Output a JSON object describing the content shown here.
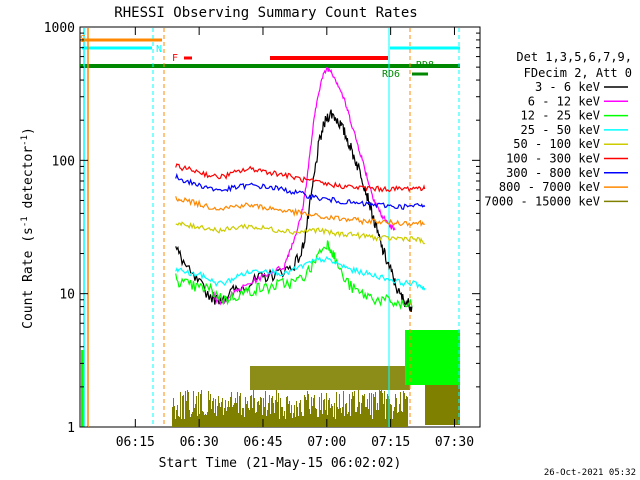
{
  "chart_data": {
    "type": "line",
    "title": "RHESSI Observing Summary Count Rates",
    "xlabel": "Start Time (21-May-15 06:02:02)",
    "ylabel": "Count Rate (s⁻¹ detector⁻¹)",
    "ylabel_parts": [
      "Count Rate (s",
      "-1",
      " detector",
      "-1",
      ")"
    ],
    "yscale": "log",
    "ylim": [
      1,
      1000
    ],
    "xlim_minutes": [
      0,
      94
    ],
    "x_ticks": [
      {
        "label": "06:15",
        "minute": 13
      },
      {
        "label": "06:30",
        "minute": 28
      },
      {
        "label": "06:45",
        "minute": 43
      },
      {
        "label": "07:00",
        "minute": 58
      },
      {
        "label": "07:15",
        "minute": 73
      },
      {
        "label": "07:30",
        "minute": 88
      }
    ],
    "y_ticks": [
      {
        "label": "1",
        "value": 1
      },
      {
        "label": "10",
        "value": 10
      },
      {
        "label": "100",
        "value": 100
      },
      {
        "label": "1000",
        "value": 1000
      }
    ],
    "timestamp": "26-Oct-2021 05:32",
    "legend_header": [
      "Det 1,3,5,6,7,9,",
      "FDecim 2, Att 0"
    ],
    "legend_placement": "right",
    "series": [
      {
        "name": "3 - 6 keV",
        "color": "#000000",
        "points": [
          [
            22.5,
            22
          ],
          [
            24,
            18
          ],
          [
            26,
            14
          ],
          [
            28,
            12
          ],
          [
            30,
            10
          ],
          [
            32,
            9
          ],
          [
            34,
            9.5
          ],
          [
            36,
            10.5
          ],
          [
            38,
            11
          ],
          [
            40,
            12
          ],
          [
            42,
            13
          ],
          [
            44,
            13.5
          ],
          [
            46,
            14
          ],
          [
            48,
            15
          ],
          [
            50,
            16
          ],
          [
            52,
            20
          ],
          [
            53,
            28
          ],
          [
            54,
            45
          ],
          [
            55,
            75
          ],
          [
            56,
            125
          ],
          [
            57,
            170
          ],
          [
            58,
            210
          ],
          [
            59,
            225
          ],
          [
            60,
            210
          ],
          [
            61,
            190
          ],
          [
            62,
            165
          ],
          [
            63,
            140
          ],
          [
            64,
            115
          ],
          [
            65,
            95
          ],
          [
            66,
            80
          ],
          [
            67,
            62
          ],
          [
            68,
            48
          ],
          [
            69,
            36
          ],
          [
            70,
            28
          ],
          [
            71,
            22
          ],
          [
            72,
            18
          ],
          [
            73,
            15
          ],
          [
            74,
            12
          ],
          [
            75,
            10
          ],
          [
            76,
            9
          ],
          [
            77,
            8.5
          ],
          [
            78,
            8
          ]
        ]
      },
      {
        "name": "6 - 12 keV",
        "color": "#ff00ff",
        "points": [
          [
            31,
            11
          ],
          [
            32,
            9
          ],
          [
            33,
            8.5
          ],
          [
            34,
            9
          ],
          [
            36,
            10
          ],
          [
            38,
            11
          ],
          [
            40,
            12
          ],
          [
            42,
            13
          ],
          [
            44,
            14
          ],
          [
            46,
            15
          ],
          [
            48,
            16
          ],
          [
            49,
            20
          ],
          [
            50,
            24
          ],
          [
            51,
            30
          ],
          [
            52,
            38
          ],
          [
            53,
            60
          ],
          [
            54,
            110
          ],
          [
            55,
            200
          ],
          [
            56,
            320
          ],
          [
            57,
            420
          ],
          [
            58,
            490
          ],
          [
            59,
            470
          ],
          [
            60,
            410
          ],
          [
            61,
            350
          ],
          [
            62,
            290
          ],
          [
            63,
            230
          ],
          [
            64,
            180
          ],
          [
            65,
            140
          ],
          [
            66,
            110
          ],
          [
            67,
            85
          ],
          [
            68,
            65
          ],
          [
            69,
            52
          ],
          [
            70,
            44
          ],
          [
            71,
            38
          ],
          [
            72,
            35
          ],
          [
            73,
            32
          ],
          [
            74,
            30
          ]
        ]
      },
      {
        "name": "12 - 25 keV",
        "color": "#00ff00",
        "points": [
          [
            22.5,
            13
          ],
          [
            24,
            12
          ],
          [
            26,
            11.5
          ],
          [
            28,
            11
          ],
          [
            30,
            11
          ],
          [
            32,
            10
          ],
          [
            34,
            9
          ],
          [
            36,
            9.5
          ],
          [
            38,
            10
          ],
          [
            40,
            10.5
          ],
          [
            42,
            11
          ],
          [
            44,
            11
          ],
          [
            46,
            11.5
          ],
          [
            48,
            12
          ],
          [
            50,
            12
          ],
          [
            52,
            13
          ],
          [
            54,
            15
          ],
          [
            56,
            20
          ],
          [
            58,
            24
          ],
          [
            59,
            22
          ],
          [
            60,
            18
          ],
          [
            62,
            13
          ],
          [
            64,
            11
          ],
          [
            66,
            10
          ],
          [
            68,
            9.5
          ],
          [
            70,
            9
          ],
          [
            72,
            8.8
          ],
          [
            74,
            8.5
          ],
          [
            76,
            8.2
          ],
          [
            78,
            8
          ]
        ]
      },
      {
        "name": "25 - 50 keV",
        "color": "#00ffff",
        "points": [
          [
            22.5,
            15
          ],
          [
            24,
            15
          ],
          [
            26,
            14
          ],
          [
            28,
            14
          ],
          [
            30,
            13
          ],
          [
            32,
            12
          ],
          [
            34,
            12
          ],
          [
            36,
            13
          ],
          [
            38,
            14
          ],
          [
            40,
            14.5
          ],
          [
            42,
            15
          ],
          [
            44,
            15
          ],
          [
            46,
            14.5
          ],
          [
            48,
            14
          ],
          [
            50,
            15
          ],
          [
            52,
            16
          ],
          [
            54,
            17
          ],
          [
            56,
            18
          ],
          [
            58,
            18
          ],
          [
            60,
            17
          ],
          [
            62,
            16
          ],
          [
            64,
            15
          ],
          [
            66,
            14.5
          ],
          [
            68,
            14
          ],
          [
            70,
            13.5
          ],
          [
            72,
            13
          ],
          [
            74,
            12.5
          ],
          [
            76,
            12
          ],
          [
            78,
            12
          ],
          [
            80,
            11.5
          ],
          [
            81,
            11
          ]
        ]
      },
      {
        "name": "50 - 100 keV",
        "color": "#cccc00",
        "points": [
          [
            22.5,
            33
          ],
          [
            24,
            33
          ],
          [
            26,
            32
          ],
          [
            28,
            32
          ],
          [
            30,
            31
          ],
          [
            32,
            30
          ],
          [
            34,
            30
          ],
          [
            36,
            31
          ],
          [
            38,
            32
          ],
          [
            40,
            32
          ],
          [
            42,
            31
          ],
          [
            44,
            31
          ],
          [
            46,
            30
          ],
          [
            48,
            30
          ],
          [
            50,
            29
          ],
          [
            52,
            29
          ],
          [
            54,
            30
          ],
          [
            56,
            30
          ],
          [
            58,
            29
          ],
          [
            60,
            28
          ],
          [
            62,
            28
          ],
          [
            64,
            28
          ],
          [
            66,
            27
          ],
          [
            68,
            27
          ],
          [
            70,
            26
          ],
          [
            72,
            26
          ],
          [
            74,
            26
          ],
          [
            76,
            26
          ],
          [
            78,
            26
          ],
          [
            80,
            25
          ],
          [
            81,
            24
          ]
        ]
      },
      {
        "name": "100 - 300 keV",
        "color": "#ff0000",
        "points": [
          [
            22.5,
            90
          ],
          [
            24,
            88
          ],
          [
            26,
            85
          ],
          [
            28,
            82
          ],
          [
            30,
            78
          ],
          [
            32,
            75
          ],
          [
            34,
            76
          ],
          [
            36,
            80
          ],
          [
            38,
            84
          ],
          [
            40,
            86
          ],
          [
            42,
            85
          ],
          [
            44,
            82
          ],
          [
            46,
            80
          ],
          [
            48,
            78
          ],
          [
            50,
            75
          ],
          [
            52,
            72
          ],
          [
            54,
            70
          ],
          [
            56,
            68
          ],
          [
            58,
            66
          ],
          [
            60,
            65
          ],
          [
            62,
            64
          ],
          [
            64,
            63
          ],
          [
            66,
            62
          ],
          [
            68,
            62
          ],
          [
            70,
            61
          ],
          [
            72,
            61
          ],
          [
            74,
            61
          ],
          [
            76,
            61
          ],
          [
            78,
            62
          ],
          [
            80,
            62
          ],
          [
            81,
            61
          ]
        ]
      },
      {
        "name": "300 - 800 keV",
        "color": "#0000ff",
        "points": [
          [
            22.5,
            75
          ],
          [
            24,
            72
          ],
          [
            26,
            68
          ],
          [
            28,
            65
          ],
          [
            30,
            63
          ],
          [
            32,
            60
          ],
          [
            34,
            60
          ],
          [
            36,
            62
          ],
          [
            38,
            64
          ],
          [
            40,
            65
          ],
          [
            42,
            64
          ],
          [
            44,
            63
          ],
          [
            46,
            62
          ],
          [
            48,
            60
          ],
          [
            50,
            58
          ],
          [
            52,
            56
          ],
          [
            54,
            54
          ],
          [
            56,
            52
          ],
          [
            58,
            51
          ],
          [
            60,
            50
          ],
          [
            62,
            49
          ],
          [
            64,
            48
          ],
          [
            66,
            47
          ],
          [
            68,
            47
          ],
          [
            70,
            46
          ],
          [
            72,
            46
          ],
          [
            74,
            45
          ],
          [
            76,
            45
          ],
          [
            78,
            45
          ],
          [
            80,
            46
          ],
          [
            81,
            45
          ]
        ]
      },
      {
        "name": "800 - 7000 keV",
        "color": "#ff8800",
        "points": [
          [
            22.5,
            52
          ],
          [
            24,
            51
          ],
          [
            26,
            49
          ],
          [
            28,
            47
          ],
          [
            30,
            45
          ],
          [
            32,
            44
          ],
          [
            34,
            44
          ],
          [
            36,
            45
          ],
          [
            38,
            46
          ],
          [
            40,
            46
          ],
          [
            42,
            45
          ],
          [
            44,
            44
          ],
          [
            46,
            43
          ],
          [
            48,
            42
          ],
          [
            50,
            41
          ],
          [
            52,
            40
          ],
          [
            54,
            39
          ],
          [
            56,
            38
          ],
          [
            58,
            37
          ],
          [
            60,
            37
          ],
          [
            62,
            36
          ],
          [
            64,
            36
          ],
          [
            66,
            35
          ],
          [
            68,
            35
          ],
          [
            70,
            35
          ],
          [
            72,
            34
          ],
          [
            74,
            34
          ],
          [
            76,
            34
          ],
          [
            78,
            34
          ],
          [
            80,
            34
          ],
          [
            81,
            33
          ]
        ]
      },
      {
        "name": "7000 - 15000 keV",
        "color": "#808000",
        "values": []
      }
    ]
  }
}
